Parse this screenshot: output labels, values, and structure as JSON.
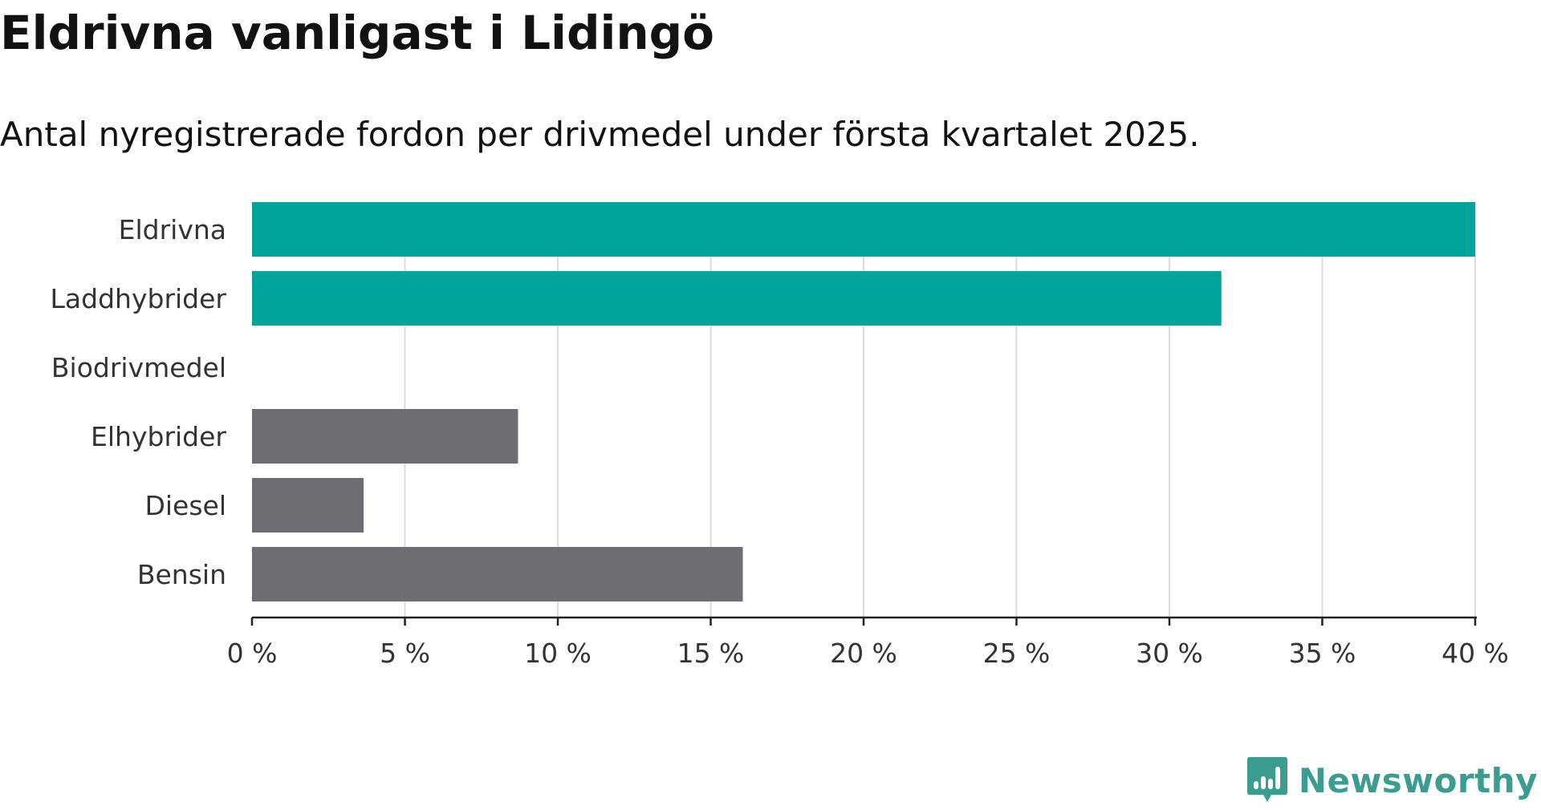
{
  "header": {
    "title": "Eldrivna vanligast i Lidingö",
    "subtitle": "Antal nyregistrerade fordon per drivmedel under första kvartalet 2025."
  },
  "brand": {
    "name": "Newsworthy",
    "logo_icon": "newsworthy-logo-icon",
    "color": "#3a9d90"
  },
  "chart_data": {
    "type": "bar",
    "orientation": "horizontal",
    "categories": [
      "Eldrivna",
      "Laddhybrider",
      "Biodrivmedel",
      "Elhybrider",
      "Diesel",
      "Bensin"
    ],
    "values": [
      40,
      31.7,
      0,
      8.7,
      3.65,
      16.05
    ],
    "colors": [
      "#00a49a",
      "#00a49a",
      "#00a49a",
      "#6e6d73",
      "#6e6d73",
      "#6e6d73"
    ],
    "xlim": [
      0,
      40
    ],
    "x_ticks": [
      0,
      5,
      10,
      15,
      20,
      25,
      30,
      35,
      40
    ],
    "x_tick_labels": [
      "0 %",
      "5 %",
      "10 %",
      "15 %",
      "20 %",
      "25 %",
      "30 %",
      "35 %",
      "40 %"
    ],
    "grid": "vertical",
    "grid_color": "#dcdcdc",
    "axis_color": "#222222"
  }
}
